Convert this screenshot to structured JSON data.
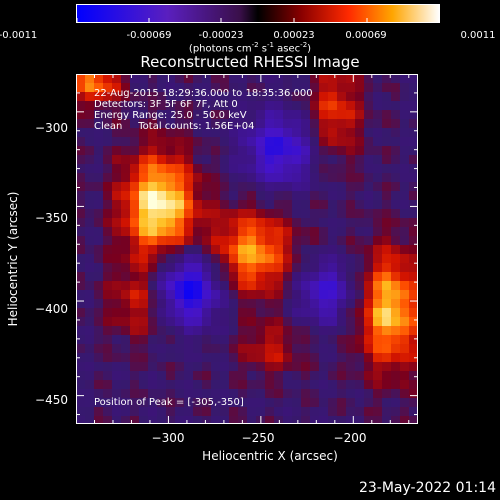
{
  "colorbar": {
    "tick_labels": [
      "-0.0011",
      "-0.00069",
      "-0.00023",
      "0.00023",
      "0.00069",
      "0.0011"
    ],
    "units_label_parts": [
      "(photons cm",
      "-2",
      " s",
      "-1",
      " asec",
      "-2",
      ")"
    ]
  },
  "title": "Reconstructed RHESSI Image",
  "info": {
    "lines": [
      "22-Aug-2015 18:29:36.000 to 18:35:36.000",
      "Detectors: 3F 5F 6F 7F, Att 0",
      "Energy Range: 25.0 - 50.0 keV",
      "Clean     Total counts: 1.56E+04"
    ],
    "peak": "Position of Peak = [-305,-350]"
  },
  "footer_date": "23-May-2022 01:14",
  "chart_data": {
    "type": "heatmap",
    "title": "Reconstructed RHESSI Image",
    "xlabel": "Heliocentric X (arcsec)",
    "ylabel": "Heliocentric Y (arcsec)",
    "xlim": [
      -350,
      -165
    ],
    "ylim": [
      -465,
      -280
    ],
    "x_ticks": [
      -300,
      -250,
      -200
    ],
    "y_ticks": [
      -300,
      -350,
      -400,
      -450
    ],
    "x_tick_labels": [
      "−300",
      "−250",
      "−200"
    ],
    "y_tick_labels": [
      "−300",
      "−350",
      "−400",
      "−450"
    ],
    "value_range": [
      -0.0011,
      0.0011
    ],
    "colormap": "blue-purple-red-yellow-white",
    "grid": false,
    "peak": [
      -305,
      -350
    ],
    "sources": [
      {
        "x": -305,
        "y": -350,
        "amp": 1.0,
        "sx": 14,
        "sy": 20
      },
      {
        "x": -180,
        "y": -405,
        "amp": 0.85,
        "sx": 12,
        "sy": 22
      },
      {
        "x": -255,
        "y": -375,
        "amp": 0.75,
        "sx": 16,
        "sy": 16
      },
      {
        "x": -340,
        "y": -285,
        "amp": 0.65,
        "sx": 10,
        "sy": 8
      },
      {
        "x": -210,
        "y": -300,
        "amp": 0.5,
        "sx": 10,
        "sy": 18
      },
      {
        "x": -315,
        "y": -400,
        "amp": 0.45,
        "sx": 12,
        "sy": 14
      },
      {
        "x": -245,
        "y": -425,
        "amp": 0.35,
        "sx": 12,
        "sy": 10
      }
    ],
    "negative_sources": [
      {
        "x": -290,
        "y": -393,
        "amp": -0.95,
        "sx": 14,
        "sy": 14
      },
      {
        "x": -240,
        "y": -320,
        "amp": -0.7,
        "sx": 14,
        "sy": 14
      },
      {
        "x": -215,
        "y": -395,
        "amp": -0.6,
        "sx": 12,
        "sy": 12
      }
    ]
  }
}
